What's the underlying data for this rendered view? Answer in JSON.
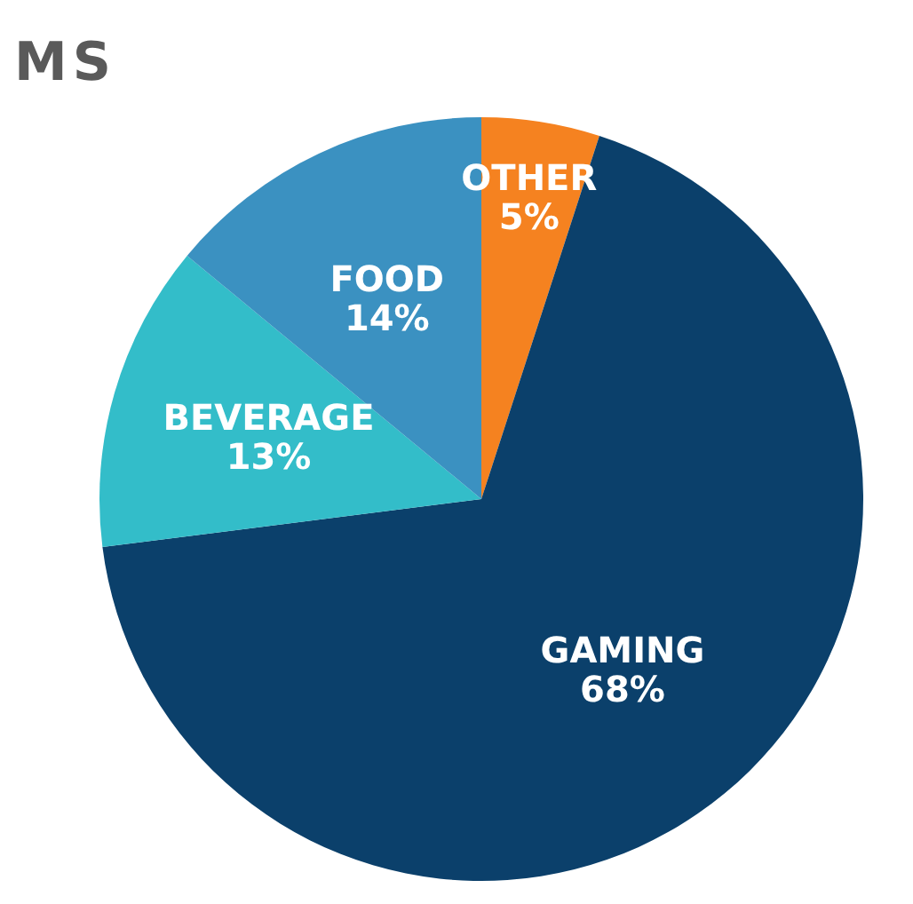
{
  "chart_data": {
    "type": "pie",
    "title": "MS",
    "categories": [
      "OTHER",
      "GAMING",
      "BEVERAGE",
      "FOOD"
    ],
    "values": [
      5,
      68,
      13,
      14
    ],
    "value_labels": [
      "5%",
      "68%",
      "13%",
      "14%"
    ],
    "colors": [
      "#f58220",
      "#0b406b",
      "#33bdc9",
      "#3b91c1"
    ]
  }
}
